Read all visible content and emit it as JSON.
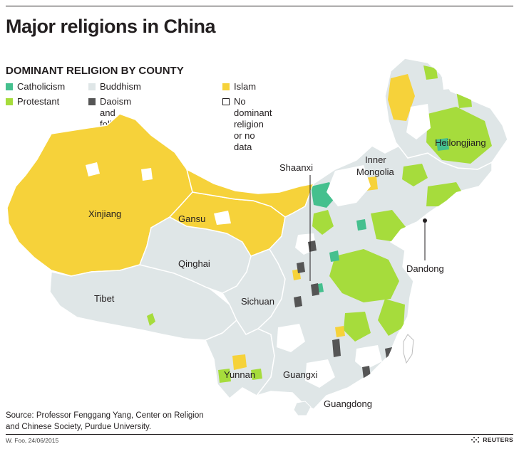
{
  "title": "Major religions in China",
  "legend": {
    "heading": "DOMINANT RELIGION BY COUNTY",
    "items": [
      {
        "key": "catholicism",
        "label": "Catholicism",
        "color": "#45c08e"
      },
      {
        "key": "buddhism",
        "label": "Buddhism",
        "color": "#dfe6e7"
      },
      {
        "key": "islam",
        "label": "Islam",
        "color": "#f6d23a"
      },
      {
        "key": "protestant",
        "label": "Protestant",
        "color": "#a6dc3c"
      },
      {
        "key": "daoism",
        "label": "Daoism and folk religion",
        "color": "#555555"
      },
      {
        "key": "none",
        "label": "No dominant religion\nor no data",
        "color": "#ffffff"
      }
    ]
  },
  "map": {
    "regions": {
      "xinjiang": "Xinjiang",
      "gansu": "Gansu",
      "qinghai": "Qinghai",
      "tibet": "Tibet",
      "sichuan": "Sichuan",
      "yunnan": "Yunnan",
      "guangxi": "Guangxi",
      "guangdong": "Guangdong",
      "shaanxi": "Shaanxi",
      "inner_mongolia_line1": "Inner",
      "inner_mongolia_line2": "Mongolia",
      "heilongjiang": "Heilongjiang",
      "dandong": "Dandong"
    }
  },
  "source": "Source: Professor Fenggang Yang, Center on Religion and Chinese Society, Purdue University.",
  "credit": "W. Foo, 24/06/2015",
  "publisher": "REUTERS"
}
